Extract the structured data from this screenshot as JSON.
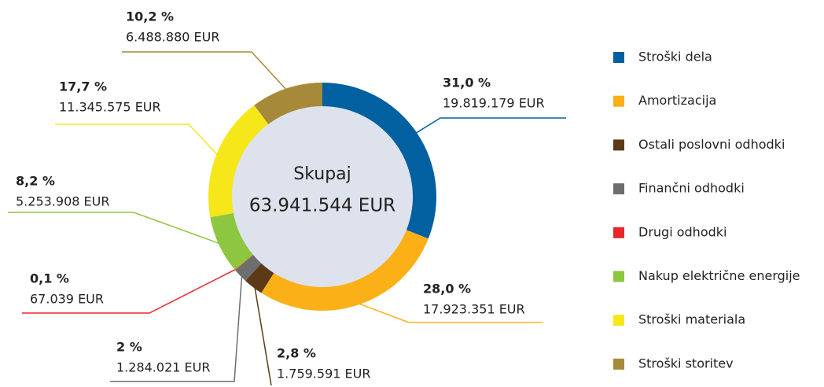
{
  "chart_data": {
    "type": "donut",
    "categories": [
      "Stroški dela",
      "Amortizacija",
      "Ostali poslovni odhodki",
      "Finančni odhodki",
      "Drugi odhodki",
      "Nakup električne energije",
      "Stroški materiala",
      "Stroški storitev"
    ],
    "values": [
      31.0,
      28.0,
      2.8,
      2,
      0.1,
      8.2,
      17.7,
      10.2
    ],
    "value_labels": [
      "31,0 %",
      "28,0 %",
      "2,8 %",
      "2 %",
      "0,1 %",
      "8,2 %",
      "17,7 %",
      "10,2 %"
    ],
    "amounts": [
      19819179,
      17923351,
      1759591,
      1284021,
      67039,
      5253908,
      11345575,
      6488880
    ],
    "amount_labels": [
      "19.819.179 EUR",
      "17.923.351 EUR",
      "1.759.591 EUR",
      "1.284.021 EUR",
      "67.039 EUR",
      "5.253.908 EUR",
      "11.345.575 EUR",
      "6.488.880 EUR"
    ],
    "colors": [
      "#0060a0",
      "#fbb018",
      "#5c3a17",
      "#6d6e70",
      "#e8262a",
      "#8dc63f",
      "#f5e71a",
      "#a68a3a"
    ],
    "center_title": "Skupaj",
    "total": 63941544,
    "total_label": "63.941.544 EUR"
  }
}
